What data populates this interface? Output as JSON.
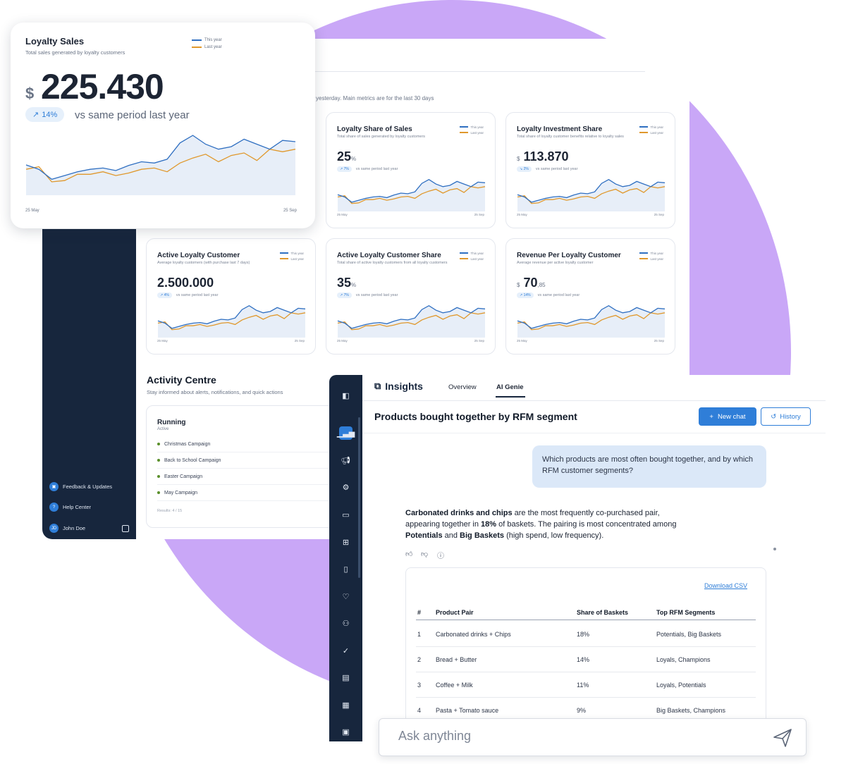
{
  "colors": {
    "accent": "#2f7ed8",
    "this_year": "#2f6fc1",
    "last_year": "#e0982c",
    "navy": "#17263d",
    "blob": "#c9a7f7"
  },
  "legend": {
    "this_year": "This year",
    "last_year": "Last year"
  },
  "dashboard": {
    "subtitle": "yesterday. Main metrics are for the last 30 days",
    "cards": [
      {
        "title": "Loyalty Share of Sales",
        "sub": "Total share of sales generated by loyalty customers",
        "prefix": "",
        "value": "25",
        "suffix": "%",
        "trend": "↗ 7%",
        "vs": "vs same period last year",
        "start": "25 May",
        "end": "25 Sep"
      },
      {
        "title": "Loyalty Investment Share",
        "sub": "Total share of loyalty customer benefits relative to loyalty sales",
        "prefix": "$",
        "value": "113.870",
        "suffix": "",
        "trend": "↘ 2%",
        "vs": "vs same period last year",
        "start": "25 May",
        "end": "25 Sep"
      },
      {
        "title": "Active Loyalty Customer",
        "sub": "Average loyalty customers (with purchase last 7 days)",
        "prefix": "",
        "value": "2.500.000",
        "suffix": "",
        "trend": "↗ 4%",
        "vs": "vs same period last year",
        "start": "25 May",
        "end": "25 Sep"
      },
      {
        "title": "Active Loyalty Customer Share",
        "sub": "Total share of active loyalty customers from all loyalty customers",
        "prefix": "",
        "value": "35",
        "suffix": "%",
        "trend": "↗ 7%",
        "vs": "vs same period last year",
        "start": "25 May",
        "end": "25 Sep"
      },
      {
        "title": "Revenue Per Loyalty Customer",
        "sub": "Average revenue per active loyalty customer",
        "prefix": "$",
        "value": "70",
        "suffix": ",85",
        "trend": "↗ 14%",
        "vs": "vs same period last year",
        "start": "25 May",
        "end": "25 Sep"
      }
    ],
    "activity": {
      "title": "Activity Centre",
      "subtitle": "Stay informed about alerts, notifications, and quick actions",
      "section": "Running",
      "section_sub": "Active",
      "campaigns": [
        "Christmas Campaign",
        "Back to School Campaign",
        "Easter Campaign",
        "May Campaign"
      ],
      "results": "Results: 4 / 15"
    },
    "sidebar": {
      "feedback": "Feedback & Updates",
      "help": "Help Center",
      "user": "John Doe",
      "user_initials": "JD"
    }
  },
  "loyalty_sales": {
    "title": "Loyalty Sales",
    "subtitle": "Total sales generated by loyalty customers",
    "currency": "$",
    "value": "225.430",
    "trend": "14%",
    "trend_arrow": "↗",
    "vs": "vs same period last year",
    "start": "25 May",
    "end": "25 Sep"
  },
  "insights": {
    "title": "Insights",
    "tabs": [
      "Overview",
      "AI Genie"
    ],
    "active_tab": "AI Genie",
    "page_title": "Products bought together by RFM segment",
    "new_chat": "New chat",
    "history": "History",
    "question": "Which products are most often bought together, and by which RFM customer segments?",
    "answer": {
      "p1_bold": "Carbonated drinks and chips",
      "p1": " are the most frequently co-purchased pair, appearing together in ",
      "p2_bold": "18%",
      "p2": " of baskets. The pairing is most concentrated among ",
      "p3_bold": "Potentials",
      "p3": " and ",
      "p4_bold": "Big Baskets",
      "p4": " (high spend, low frequency)."
    },
    "download": "Download CSV",
    "table": {
      "headers": [
        "#",
        "Product Pair",
        "Share of Baskets",
        "Top RFM Segments"
      ],
      "rows": [
        [
          "1",
          "Carbonated drinks + Chips",
          "18%",
          "Potentials, Big Baskets"
        ],
        [
          "2",
          "Bread + Butter",
          "14%",
          "Loyals, Champions"
        ],
        [
          "3",
          "Coffee + Milk",
          "11%",
          "Loyals, Potentials"
        ],
        [
          "4",
          "Pasta + Tomato sauce",
          "9%",
          "Big Baskets, Champions"
        ]
      ]
    },
    "ask_placeholder": "Ask anything"
  }
}
